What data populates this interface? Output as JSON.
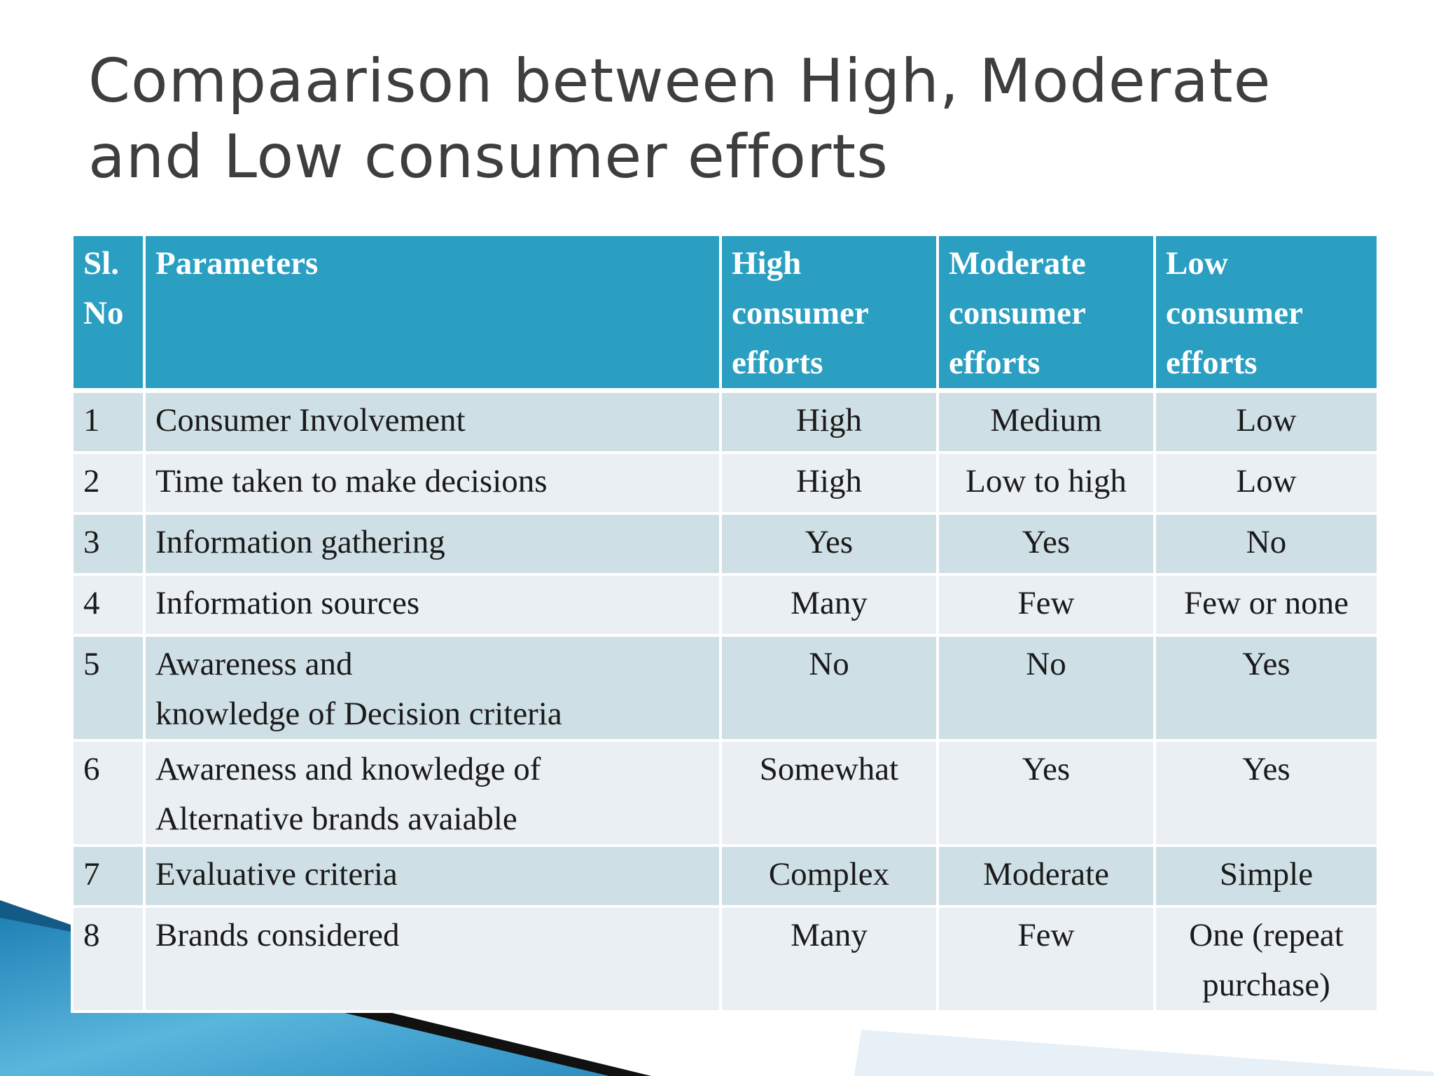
{
  "slide": {
    "title_line1": "Compaarison between High, Moderate",
    "title_line2": "and Low consumer efforts"
  },
  "table": {
    "headers": [
      "Sl.\nNo",
      "Parameters",
      "High\nconsumer\nefforts",
      "Moderate\nconsumer\nefforts",
      "Low\nconsumer\n efforts"
    ],
    "rows": [
      {
        "no": "1",
        "parameter": "Consumer Involvement",
        "high": "High",
        "moderate": "Medium",
        "low": "Low"
      },
      {
        "no": "2",
        "parameter": "Time taken to make decisions",
        "high": "High",
        "moderate": "Low to high",
        "low": "Low"
      },
      {
        "no": "3",
        "parameter": "Information gathering",
        "high": "Yes",
        "moderate": "Yes",
        "low": "No"
      },
      {
        "no": "4",
        "parameter": "Information sources",
        "high": "Many",
        "moderate": "Few",
        "low": "Few or none"
      },
      {
        "no": "5",
        "parameter": "Awareness and\nknowledge of  Decision criteria",
        "high": "No",
        "moderate": "No",
        "low": "Yes"
      },
      {
        "no": "6",
        "parameter": "Awareness and knowledge of\nAlternative brands avaiable",
        "high": "Somewhat",
        "moderate": "Yes",
        "low": "Yes"
      },
      {
        "no": "7",
        "parameter": "Evaluative criteria",
        "high": "Complex",
        "moderate": "Moderate",
        "low": "Simple"
      },
      {
        "no": "8",
        "parameter": "Brands considered",
        "high": "Many",
        "moderate": "Few",
        "low": "One  (repeat\npurchase)"
      }
    ]
  },
  "colors": {
    "header_bg": "#2a9fc1",
    "row_odd_bg": "#cfdfe6",
    "row_even_bg": "#e9eff3",
    "title_color": "#3e3e3e"
  }
}
